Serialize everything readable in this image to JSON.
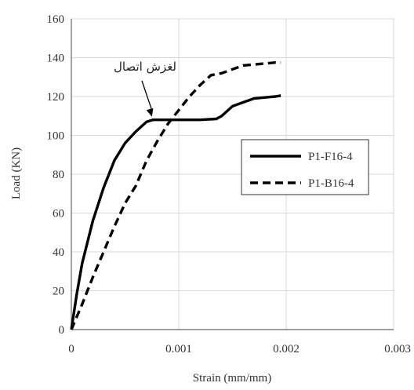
{
  "chart_data": {
    "type": "line",
    "title": "",
    "xlabel": "Strain (mm/mm)",
    "ylabel": "Load (KN)",
    "xlim": [
      0,
      0.003
    ],
    "ylim": [
      0,
      160
    ],
    "x_ticks": [
      0,
      0.001,
      0.002,
      0.003
    ],
    "x_tick_labels": [
      "0",
      "0.001",
      "0.002",
      "0.003"
    ],
    "y_ticks": [
      0,
      20,
      40,
      60,
      80,
      100,
      120,
      140,
      160
    ],
    "y_tick_labels": [
      "0",
      "20",
      "40",
      "60",
      "80",
      "100",
      "120",
      "140",
      "160"
    ],
    "grid": true,
    "legend_position": "center-right",
    "series": [
      {
        "name": "P1-F16-4",
        "style": "solid",
        "color": "#000000",
        "points": [
          [
            0,
            0
          ],
          [
            5e-05,
            18
          ],
          [
            0.0001,
            34
          ],
          [
            0.0002,
            56
          ],
          [
            0.0003,
            73
          ],
          [
            0.0004,
            87
          ],
          [
            0.0005,
            96
          ],
          [
            0.0006,
            102
          ],
          [
            0.0007,
            107
          ],
          [
            0.00076,
            108
          ],
          [
            0.0009,
            108
          ],
          [
            0.001,
            108
          ],
          [
            0.0012,
            108
          ],
          [
            0.00135,
            108.5
          ],
          [
            0.0014,
            110
          ],
          [
            0.0015,
            115
          ],
          [
            0.0016,
            117
          ],
          [
            0.0017,
            119
          ],
          [
            0.0018,
            119.5
          ],
          [
            0.0019,
            120
          ],
          [
            0.00195,
            120.5
          ]
        ]
      },
      {
        "name": "P1-B16-4",
        "style": "dashed",
        "color": "#000000",
        "points": [
          [
            0,
            0
          ],
          [
            0.0001,
            13
          ],
          [
            0.0002,
            27
          ],
          [
            0.0003,
            40
          ],
          [
            0.0004,
            53
          ],
          [
            0.0005,
            65
          ],
          [
            0.0006,
            74
          ],
          [
            0.0007,
            87
          ],
          [
            0.0008,
            97
          ],
          [
            0.0009,
            106
          ],
          [
            0.001,
            113
          ],
          [
            0.0011,
            120
          ],
          [
            0.0012,
            126
          ],
          [
            0.0013,
            131
          ],
          [
            0.0014,
            132
          ],
          [
            0.0015,
            134
          ],
          [
            0.0016,
            136
          ],
          [
            0.0017,
            136.5
          ],
          [
            0.0018,
            137
          ],
          [
            0.0019,
            137.5
          ],
          [
            0.00195,
            137.5
          ]
        ]
      }
    ],
    "annotation": {
      "text": "لغزش اتصال",
      "target": [
        0.00075,
        108
      ]
    }
  }
}
